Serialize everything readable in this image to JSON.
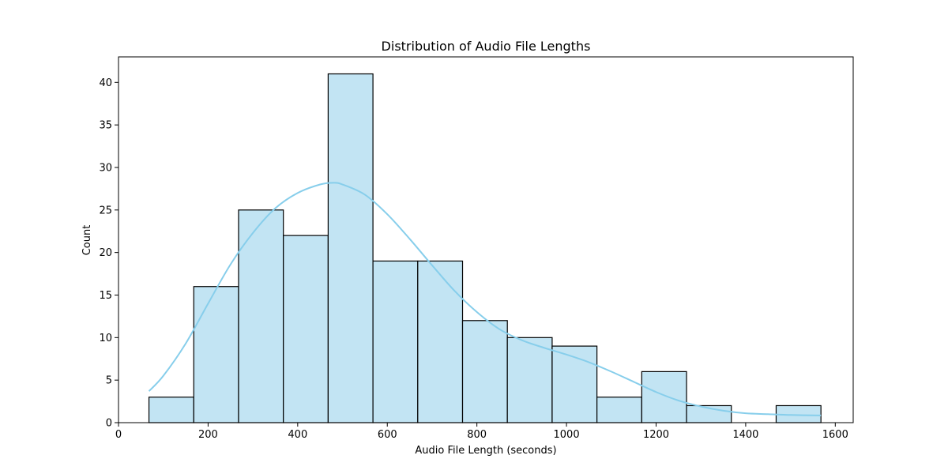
{
  "colors": {
    "bar_fill": "#c2e4f3",
    "bar_edge": "#000000",
    "kde_line": "#87ceeb",
    "axes": "#000000",
    "background": "#ffffff"
  },
  "chart_data": {
    "type": "bar",
    "subtype": "histogram_with_kde",
    "title": "Distribution of Audio File Lengths",
    "xlabel": "Audio File Length (seconds)",
    "ylabel": "Count",
    "xlim": [
      0,
      1640
    ],
    "ylim": [
      0,
      43
    ],
    "x_ticks": [
      0,
      200,
      400,
      600,
      800,
      1000,
      1200,
      1400,
      1600
    ],
    "y_ticks": [
      0,
      5,
      10,
      15,
      20,
      25,
      30,
      35,
      40
    ],
    "grid": false,
    "legend": null,
    "bins": [
      {
        "start": 68,
        "end": 168,
        "count": 3
      },
      {
        "start": 168,
        "end": 268,
        "count": 16
      },
      {
        "start": 268,
        "end": 368,
        "count": 25
      },
      {
        "start": 368,
        "end": 468,
        "count": 22
      },
      {
        "start": 468,
        "end": 568,
        "count": 41
      },
      {
        "start": 568,
        "end": 668,
        "count": 19
      },
      {
        "start": 668,
        "end": 768,
        "count": 19
      },
      {
        "start": 768,
        "end": 868,
        "count": 12
      },
      {
        "start": 868,
        "end": 968,
        "count": 10
      },
      {
        "start": 968,
        "end": 1068,
        "count": 9
      },
      {
        "start": 1068,
        "end": 1168,
        "count": 3
      },
      {
        "start": 1168,
        "end": 1268,
        "count": 6
      },
      {
        "start": 1268,
        "end": 1368,
        "count": 2
      },
      {
        "start": 1368,
        "end": 1468,
        "count": 0
      },
      {
        "start": 1468,
        "end": 1568,
        "count": 2
      }
    ],
    "kde": {
      "x": [
        68,
        100,
        150,
        200,
        250,
        300,
        350,
        400,
        450,
        480,
        500,
        550,
        600,
        650,
        700,
        750,
        800,
        850,
        900,
        950,
        1000,
        1050,
        1100,
        1150,
        1200,
        1250,
        1300,
        1350,
        1400,
        1450,
        1500,
        1568
      ],
      "y": [
        3.7,
        5.5,
        9.3,
        14.0,
        18.6,
        22.3,
        25.2,
        27.0,
        28.0,
        28.2,
        28.0,
        26.8,
        24.5,
        21.6,
        18.5,
        15.5,
        13.0,
        11.0,
        9.7,
        8.8,
        8.0,
        7.1,
        6.0,
        4.8,
        3.6,
        2.6,
        1.9,
        1.4,
        1.1,
        1.0,
        0.9,
        0.85
      ]
    }
  }
}
